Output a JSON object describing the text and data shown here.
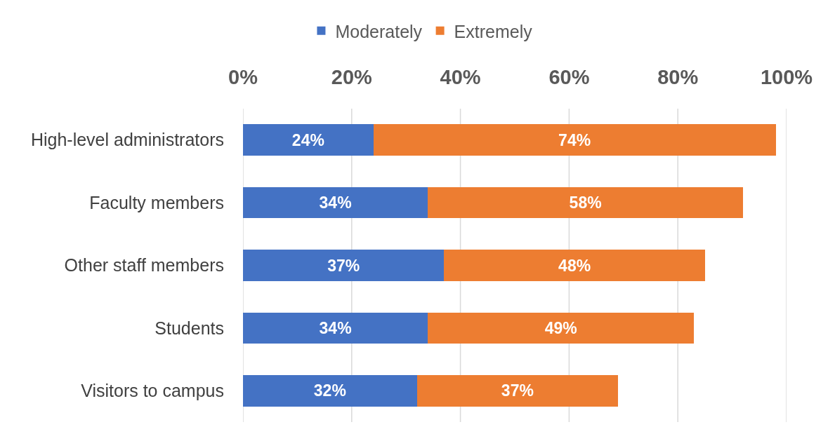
{
  "chart_data": {
    "type": "bar",
    "orientation": "horizontal",
    "stacked": true,
    "categories": [
      "High-level administrators",
      "Faculty members",
      "Other staff members",
      "Students",
      "Visitors to campus"
    ],
    "series": [
      {
        "name": "Moderately",
        "color": "#4472c4",
        "values": [
          24,
          34,
          37,
          34,
          32
        ]
      },
      {
        "name": "Extremely",
        "color": "#ed7d31",
        "values": [
          74,
          58,
          48,
          49,
          37
        ]
      }
    ],
    "xlim": [
      0,
      100
    ],
    "xticks": [
      {
        "value": 0,
        "label": "0%"
      },
      {
        "value": 20,
        "label": "20%"
      },
      {
        "value": 40,
        "label": "40%"
      },
      {
        "value": 60,
        "label": "60%"
      },
      {
        "value": 80,
        "label": "80%"
      },
      {
        "value": 100,
        "label": "100%"
      }
    ],
    "value_labels": [
      [
        "24%",
        "34%",
        "37%",
        "34%",
        "32%"
      ],
      [
        "74%",
        "58%",
        "48%",
        "49%",
        "37%"
      ]
    ],
    "grid": "x",
    "legend": "top"
  }
}
